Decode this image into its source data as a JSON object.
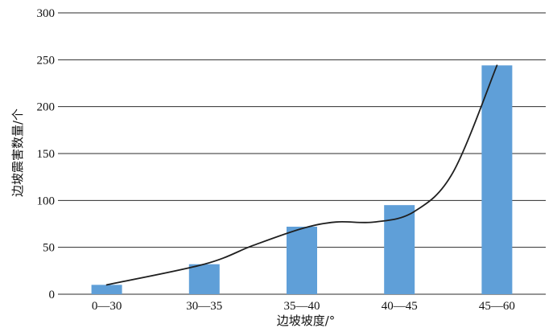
{
  "chart_data": {
    "type": "bar",
    "categories": [
      "0—30",
      "30—35",
      "35—40",
      "40—45",
      "45—60"
    ],
    "values": [
      10,
      32,
      72,
      95,
      244
    ],
    "trend_line": {
      "x": [
        0,
        1,
        1.5,
        2,
        2.35,
        2.75,
        3.15,
        3.55,
        4
      ],
      "y": [
        10,
        32,
        52,
        70,
        77,
        77,
        88,
        130,
        244
      ]
    },
    "xlabel": "边坡坡度/°",
    "ylabel": "边坡震害数量/个",
    "ylim": [
      0,
      300
    ],
    "yticks": [
      0,
      50,
      100,
      150,
      200,
      250,
      300
    ],
    "grid": true,
    "legend": "none",
    "colors": {
      "bar": "#5f9fd8",
      "line": "#1f1f1f"
    }
  }
}
